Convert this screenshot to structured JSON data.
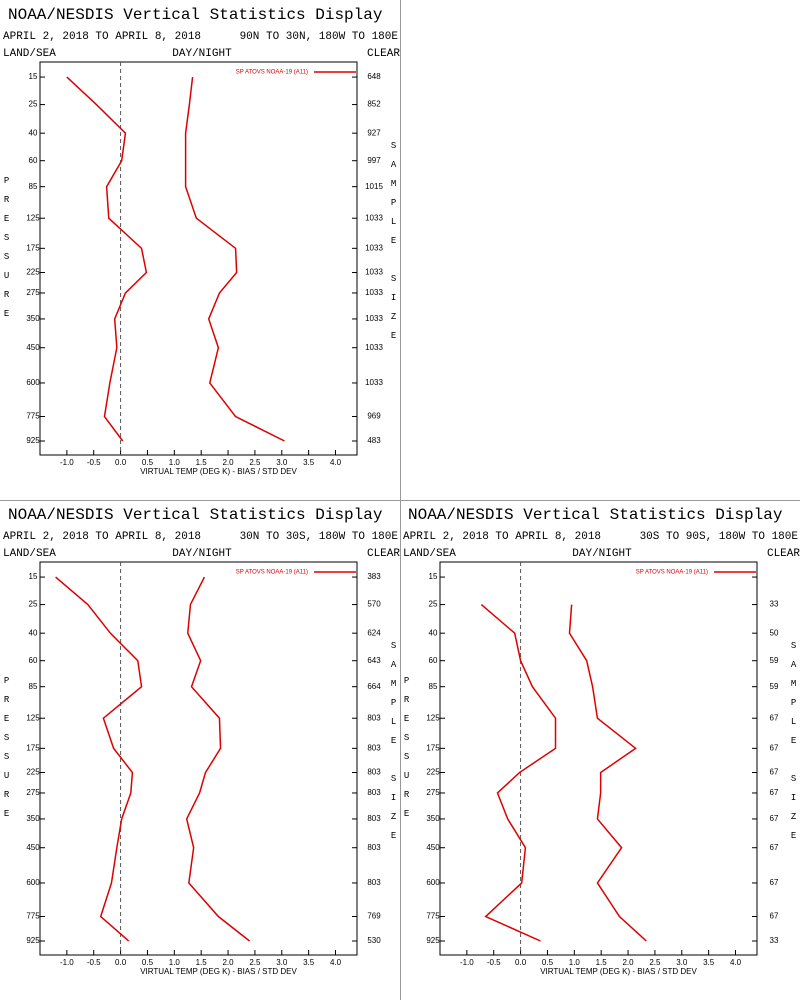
{
  "chart_data": [
    {
      "type": "line",
      "title": "NOAA/NESDIS Vertical Statistics Display",
      "date_range": "APRIL 2, 2018 TO APRIL 8, 2018",
      "region": "90N TO 30N, 180W TO 180E",
      "surface_label": "LAND/SEA",
      "time_label": "DAY/NIGHT",
      "sky_label": "CLEAR",
      "legend": "SP ATOVS NOAA-19 (A11)",
      "xlabel": "VIRTUAL TEMP (DEG K) - BIAS / STD DEV",
      "ylabel": "PRESSURE",
      "y2label": "SAMPLE SIZE",
      "levels": [
        15,
        25,
        40,
        60,
        85,
        125,
        175,
        225,
        275,
        350,
        450,
        600,
        775,
        925
      ],
      "ylim": [
        11,
        1020
      ],
      "xlim": [
        -1.5,
        4.4
      ],
      "xticks": [
        {
          "value": -1,
          "label": "-1.0"
        },
        -0.5,
        {
          "value": 0,
          "label": "0.0"
        },
        0.5,
        {
          "value": 1,
          "label": "1.0"
        },
        1.5,
        {
          "value": 2,
          "label": "2.0"
        },
        2.5,
        {
          "value": 3,
          "label": "3.0"
        },
        3.5,
        {
          "value": 4,
          "label": "4.0"
        }
      ],
      "sample_sizes": [
        648,
        852,
        927,
        997,
        1015,
        1033,
        1033,
        1033,
        1033,
        1033,
        1033,
        1033,
        969,
        483
      ],
      "series": [
        {
          "color": "#dd0000",
          "values": [
            -1.0,
            -0.45,
            0.09,
            0.02,
            -0.26,
            -0.22,
            0.39,
            0.48,
            0.09,
            -0.11,
            -0.07,
            -0.2,
            -0.3,
            0.04
          ]
        },
        {
          "color": "#dd0000",
          "values": [
            1.34,
            1.28,
            1.21,
            1.21,
            1.21,
            1.41,
            2.14,
            2.16,
            1.84,
            1.64,
            1.82,
            1.66,
            2.14,
            3.05
          ]
        }
      ]
    },
    {
      "type": "line",
      "title": "NOAA/NESDIS Vertical Statistics Display",
      "date_range": "APRIL 2, 2018 TO APRIL 8, 2018",
      "region": "30N TO 30S, 180W TO 180E",
      "surface_label": "LAND/SEA",
      "time_label": "DAY/NIGHT",
      "sky_label": "CLEAR",
      "legend": "SP ATOVS NOAA-19 (A11)",
      "xlabel": "VIRTUAL TEMP (DEG K) - BIAS / STD DEV",
      "ylabel": "PRESSURE",
      "y2label": "SAMPLE SIZE",
      "levels": [
        15,
        25,
        40,
        60,
        85,
        125,
        175,
        225,
        275,
        350,
        450,
        600,
        775,
        925
      ],
      "ylim": [
        11,
        1020
      ],
      "xlim": [
        -1.5,
        4.4
      ],
      "xticks": [
        {
          "value": -1,
          "label": "-1.0"
        },
        -0.5,
        {
          "value": 0,
          "label": "0.0"
        },
        0.5,
        {
          "value": 1,
          "label": "1.0"
        },
        1.5,
        {
          "value": 2,
          "label": "2.0"
        },
        2.5,
        {
          "value": 3,
          "label": "3.0"
        },
        3.5,
        {
          "value": 4,
          "label": "4.0"
        }
      ],
      "sample_sizes": [
        383,
        570,
        624,
        643,
        664,
        803,
        803,
        803,
        803,
        803,
        803,
        803,
        769,
        530
      ],
      "series": [
        {
          "color": "#dd0000",
          "values": [
            -1.21,
            -0.61,
            -0.19,
            0.32,
            0.39,
            -0.32,
            -0.13,
            0.22,
            0.19,
            0.02,
            -0.07,
            -0.17,
            -0.37,
            0.15
          ]
        },
        {
          "color": "#dd0000",
          "values": [
            1.56,
            1.3,
            1.25,
            1.49,
            1.32,
            1.84,
            1.86,
            1.58,
            1.47,
            1.23,
            1.36,
            1.27,
            1.82,
            2.4
          ]
        }
      ]
    },
    {
      "type": "line",
      "title": "NOAA/NESDIS Vertical Statistics Display",
      "date_range": "APRIL 2, 2018 TO APRIL 8, 2018",
      "region": "30S TO 90S, 180W TO 180E",
      "surface_label": "LAND/SEA",
      "time_label": "DAY/NIGHT",
      "sky_label": "CLEAR",
      "legend": "SP ATOVS NOAA-19 (A11)",
      "xlabel": "VIRTUAL TEMP (DEG K) - BIAS / STD DEV",
      "ylabel": "PRESSURE",
      "y2label": "SAMPLE SIZE",
      "levels": [
        15,
        25,
        40,
        60,
        85,
        125,
        175,
        225,
        275,
        350,
        450,
        600,
        775,
        925
      ],
      "ylim": [
        11,
        1020
      ],
      "xlim": [
        -1.5,
        4.4
      ],
      "xticks": [
        {
          "value": -1,
          "label": "-1.0"
        },
        -0.5,
        {
          "value": 0,
          "label": "0.0"
        },
        0.5,
        {
          "value": 1,
          "label": "1.0"
        },
        1.5,
        {
          "value": 2,
          "label": "2.0"
        },
        2.5,
        {
          "value": 3,
          "label": "3.0"
        },
        3.5,
        {
          "value": 4,
          "label": "4.0"
        }
      ],
      "sample_sizes": [
        null,
        33,
        50,
        59,
        59,
        67,
        67,
        67,
        67,
        67,
        67,
        67,
        67,
        33
      ],
      "series": [
        {
          "color": "#dd0000",
          "values": [
            null,
            -0.73,
            -0.11,
            0.0,
            0.22,
            0.65,
            0.65,
            -0.02,
            -0.43,
            -0.24,
            0.09,
            0.02,
            -0.65,
            0.37
          ]
        },
        {
          "color": "#dd0000",
          "values": [
            null,
            0.95,
            0.91,
            1.23,
            1.34,
            1.43,
            2.14,
            1.49,
            1.49,
            1.43,
            1.88,
            1.43,
            1.84,
            2.34
          ]
        }
      ]
    }
  ]
}
